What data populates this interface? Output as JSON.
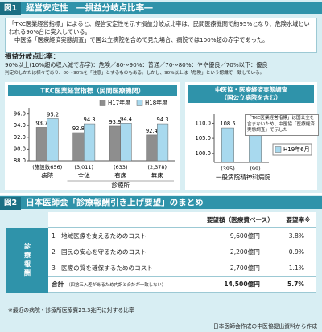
{
  "figure1": {
    "label": "図1",
    "title": "経営安定性　―損益分岐点比率―",
    "summary": [
      "「TKC医業経営指標」によると、経営安定性を示す損益分岐点比率は、民間医療機関で約95%となり、危険水域といわれる90%台に突入している。",
      "中医協「医療経済実態調査」で国公立病院を含めて見た場合、病院では100%超の赤字であった。"
    ],
    "criteria": {
      "label": "損益分岐点比率：",
      "text": "90%以上(10%超の収入減で赤字)：危険／80～90%：普通／70～80%：やや優良／70%以下：優良",
      "note": "判定のしかたは様々であり、80～90%を「注意」とするものもある。しかし、90%以上は「危険」という認識で一致している。"
    }
  },
  "chart_data": [
    {
      "type": "bar",
      "title": "TKC医業経営指標（民間医療機関）",
      "categories": [
        "病院",
        "全体",
        "有床",
        "無床"
      ],
      "category_notes": [
        "(施設数656)",
        "(3,011)",
        "(633)",
        "(2,378)"
      ],
      "group_label": "診療所",
      "series": [
        {
          "name": "H17年度",
          "color": "#8e8e8e",
          "values": [
            93.7,
            92.8,
            93.9,
            92.4
          ]
        },
        {
          "name": "H18年度",
          "color": "#a8d9ee",
          "values": [
            95.2,
            94.3,
            94.4,
            94.3
          ]
        }
      ],
      "ylim": [
        88,
        96.5
      ],
      "yticks": [
        {
          "value": 96,
          "label": "96.0"
        },
        {
          "value": 94,
          "label": "94.0"
        },
        {
          "value": 92,
          "label": "92.0"
        },
        {
          "value": 90,
          "label": "90.0"
        },
        {
          "value": 88,
          "label": "88.0"
        }
      ]
    },
    {
      "type": "bar",
      "title": "中医協・医療経済実態調査",
      "subtitle": "（国公立病院を含む）",
      "categories": [
        "一般病院",
        "精神科病院"
      ],
      "category_notes": [
        "(395)",
        "(99)"
      ],
      "series": [
        {
          "name": "H19年6月",
          "color": "#a8d9ee",
          "values": [
            108.5,
            105.9
          ]
        }
      ],
      "ylim": [
        97,
        112
      ],
      "yticks": [
        {
          "value": 110,
          "label": "110.0"
        },
        {
          "value": 105,
          "label": "105.0"
        },
        {
          "value": 100,
          "label": "100.0"
        }
      ],
      "annotation": "「TKC医業経営指標」は国公立を含まないため、中医協「医療経済実態調査」で示した"
    }
  ],
  "figure2": {
    "label": "図2",
    "title": "日本医師会「診療報酬引き上げ要望」のまとめ",
    "table": {
      "columns": [
        "要望額（医療費ベース）",
        "要望率※"
      ],
      "side_label": "診療報酬",
      "rows": [
        [
          "1",
          "地域医療を支えるためのコスト",
          "9,600億円",
          "3.8%"
        ],
        [
          "2",
          "国民の安心を守るためのコスト",
          "2,200億円",
          "0.9%"
        ],
        [
          "3",
          "医療の質を確保するためのコスト",
          "2,700億円",
          "1.1%"
        ]
      ],
      "total": [
        "合計",
        "（四捨五入差があるため内訳と合計が一致しない）",
        "14,500億円",
        "5.7%"
      ]
    },
    "footnote": "※最近の病院・診療所医療費25.3兆円に対する比率",
    "source": "日本医師会作成の中医協提出資料から作成"
  }
}
